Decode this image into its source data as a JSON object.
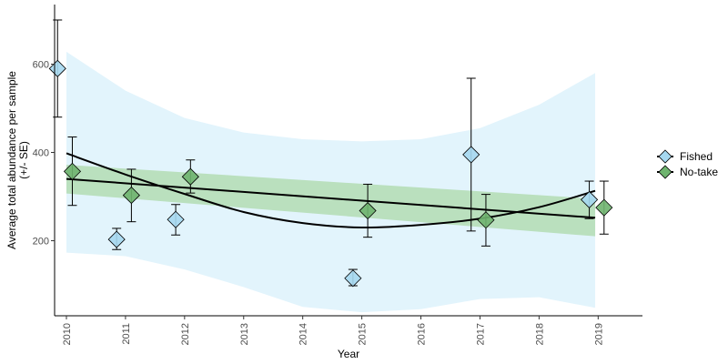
{
  "chart_data": {
    "type": "scatter",
    "xlabel": "Year",
    "ylabel_lines": [
      "Average total abundance per sample",
      "(+/- SE)"
    ],
    "x_ticks": [
      2010,
      2011,
      2012,
      2013,
      2014,
      2015,
      2016,
      2017,
      2018,
      2019
    ],
    "y_ticks": [
      200,
      400,
      600
    ],
    "xlim": [
      2009.8,
      2019.75
    ],
    "ylim": [
      30,
      735
    ],
    "grid": false,
    "legend_position": "right",
    "series": [
      {
        "name": "Fished",
        "color": "#a6d8f0",
        "band_color": "#e2f4fc",
        "marker": "diamond",
        "points": [
          {
            "x": 2009.85,
            "y": 590,
            "lo": 480,
            "hi": 700
          },
          {
            "x": 2010.85,
            "y": 203,
            "lo": 180,
            "hi": 228
          },
          {
            "x": 2011.85,
            "y": 248,
            "lo": 213,
            "hi": 282
          },
          {
            "x": 2014.85,
            "y": 115,
            "lo": 98,
            "hi": 135
          },
          {
            "x": 2016.85,
            "y": 395,
            "lo": 222,
            "hi": 568
          },
          {
            "x": 2018.85,
            "y": 293,
            "lo": 250,
            "hi": 335
          }
        ],
        "trend": [
          {
            "x": 2010.0,
            "y": 398
          },
          {
            "x": 2011.0,
            "y": 350
          },
          {
            "x": 2012.0,
            "y": 306
          },
          {
            "x": 2013.0,
            "y": 265
          },
          {
            "x": 2014.0,
            "y": 240
          },
          {
            "x": 2015.0,
            "y": 230
          },
          {
            "x": 2016.0,
            "y": 236
          },
          {
            "x": 2017.0,
            "y": 250
          },
          {
            "x": 2018.0,
            "y": 276
          },
          {
            "x": 2018.95,
            "y": 313
          }
        ],
        "ci_upper": [
          {
            "x": 2010.0,
            "y": 628
          },
          {
            "x": 2011.0,
            "y": 540
          },
          {
            "x": 2012.0,
            "y": 478
          },
          {
            "x": 2013.0,
            "y": 445
          },
          {
            "x": 2014.0,
            "y": 430
          },
          {
            "x": 2015.0,
            "y": 425
          },
          {
            "x": 2016.0,
            "y": 430
          },
          {
            "x": 2017.0,
            "y": 455
          },
          {
            "x": 2018.0,
            "y": 508
          },
          {
            "x": 2018.95,
            "y": 580
          }
        ],
        "ci_lower": [
          {
            "x": 2010.0,
            "y": 173
          },
          {
            "x": 2011.0,
            "y": 165
          },
          {
            "x": 2012.0,
            "y": 135
          },
          {
            "x": 2013.0,
            "y": 95
          },
          {
            "x": 2014.0,
            "y": 50
          },
          {
            "x": 2015.0,
            "y": 38
          },
          {
            "x": 2016.0,
            "y": 45
          },
          {
            "x": 2017.0,
            "y": 68
          },
          {
            "x": 2018.0,
            "y": 72
          },
          {
            "x": 2018.95,
            "y": 48
          }
        ]
      },
      {
        "name": "No-take",
        "color": "#6fb46f",
        "band_color": "#b3dcb3",
        "marker": "diamond",
        "points": [
          {
            "x": 2010.1,
            "y": 357,
            "lo": 280,
            "hi": 435
          },
          {
            "x": 2011.1,
            "y": 303,
            "lo": 243,
            "hi": 362
          },
          {
            "x": 2012.1,
            "y": 345,
            "lo": 308,
            "hi": 383
          },
          {
            "x": 2015.1,
            "y": 268,
            "lo": 208,
            "hi": 328
          },
          {
            "x": 2017.1,
            "y": 247,
            "lo": 188,
            "hi": 305
          },
          {
            "x": 2019.1,
            "y": 275,
            "lo": 215,
            "hi": 335
          }
        ],
        "trend": [
          {
            "x": 2010.0,
            "y": 340
          },
          {
            "x": 2018.95,
            "y": 252
          }
        ],
        "ci_upper": [
          {
            "x": 2010.0,
            "y": 372
          },
          {
            "x": 2018.95,
            "y": 295
          }
        ],
        "ci_lower": [
          {
            "x": 2010.0,
            "y": 307
          },
          {
            "x": 2018.95,
            "y": 210
          }
        ]
      }
    ]
  }
}
